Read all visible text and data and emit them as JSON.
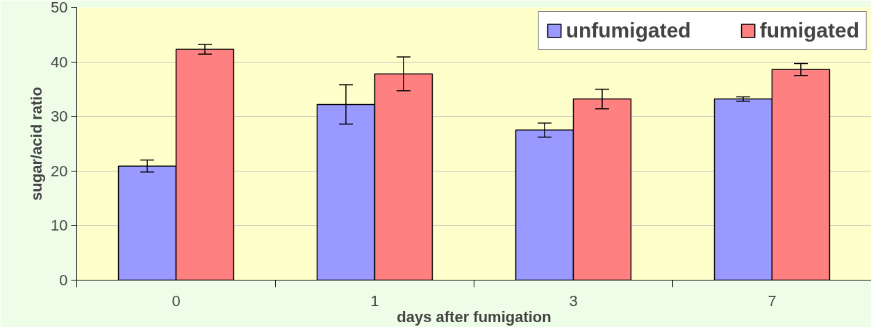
{
  "chart_data": {
    "type": "bar",
    "xlabel": "days after fumigation",
    "ylabel": "sugar/acid ratio",
    "categories": [
      "0",
      "1",
      "3",
      "7"
    ],
    "series": [
      {
        "name": "unfumigated",
        "color": "#9999ff",
        "values": [
          20.9,
          32.2,
          27.5,
          33.2
        ],
        "errors": [
          1.1,
          3.6,
          1.3,
          0.4
        ]
      },
      {
        "name": "fumigated",
        "color": "#ff8080",
        "values": [
          42.3,
          37.8,
          33.2,
          38.6
        ],
        "errors": [
          0.9,
          3.1,
          1.8,
          1.1
        ]
      }
    ],
    "ylim": [
      0,
      50
    ],
    "yticks": [
      0,
      10,
      20,
      30,
      40,
      50
    ],
    "grid": "y",
    "legend": "top right"
  }
}
